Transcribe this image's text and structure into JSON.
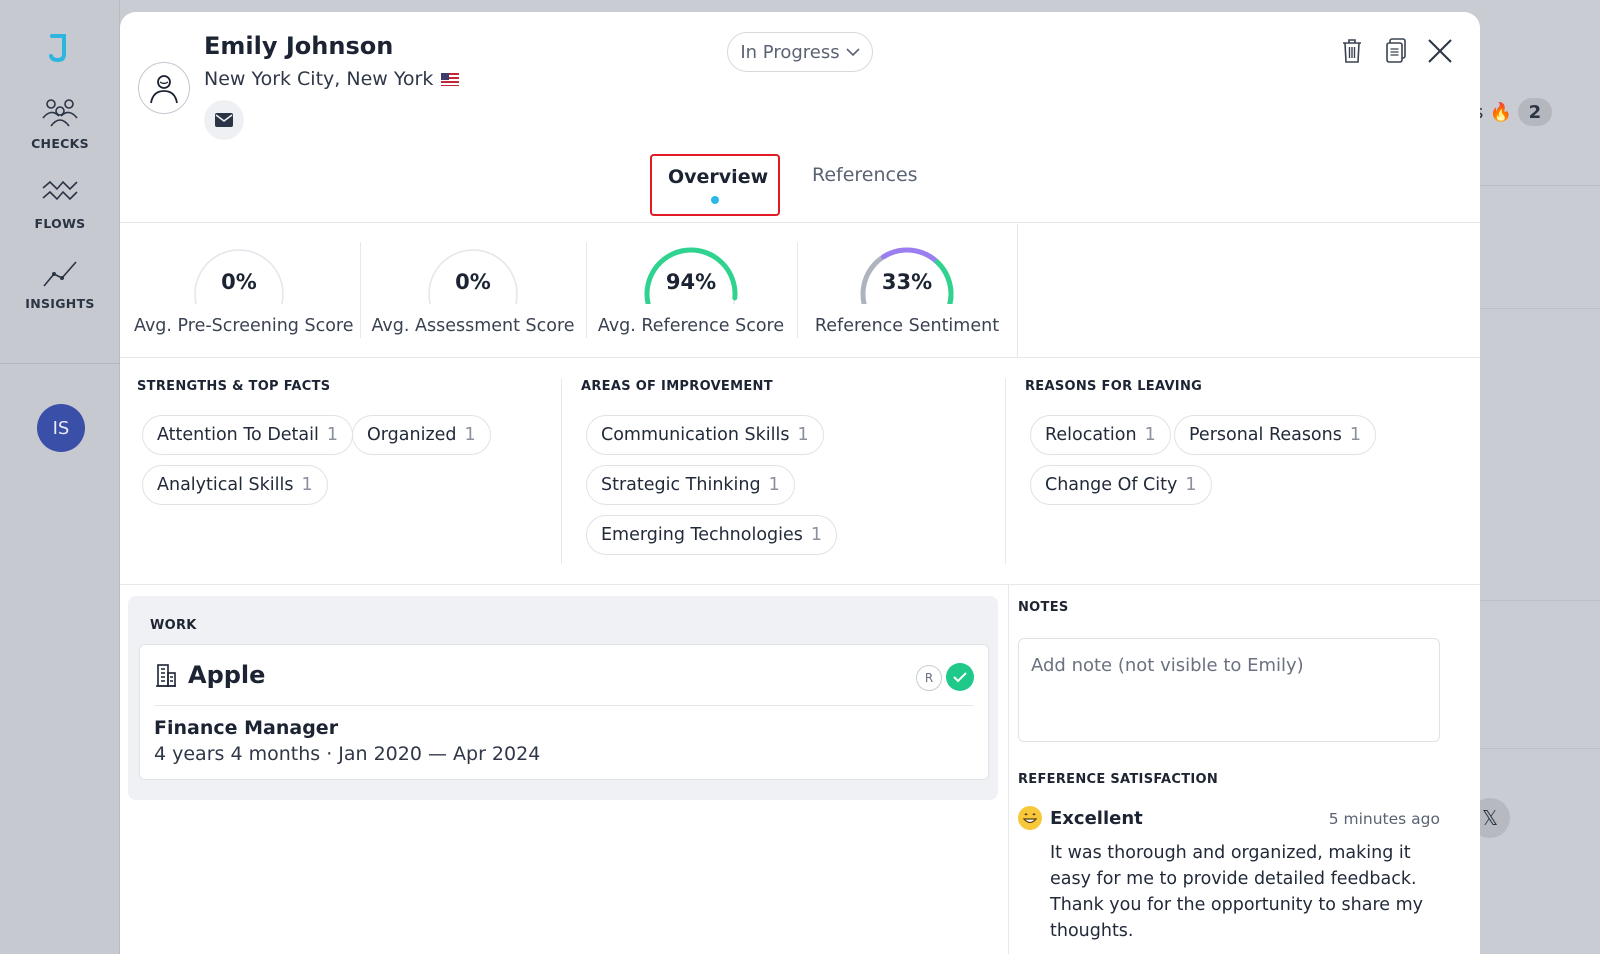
{
  "sidebar": {
    "items": [
      {
        "label": "CHECKS",
        "icon": "people-icon"
      },
      {
        "label": "FLOWS",
        "icon": "waves-icon"
      },
      {
        "label": "INSIGHTS",
        "icon": "trend-icon"
      }
    ],
    "user_initials": "IS"
  },
  "background": {
    "hint_text": "ts",
    "hint_count": "2"
  },
  "candidate": {
    "name": "Emily Johnson",
    "location": "New York City, New York"
  },
  "status": {
    "label": "In Progress"
  },
  "tabs": [
    {
      "label": "Overview",
      "active": true
    },
    {
      "label": "References",
      "active": false
    }
  ],
  "scores": [
    {
      "value": "0%",
      "label": "Avg. Pre-Screening Score",
      "percent": 0,
      "color": "#d6d9de"
    },
    {
      "value": "0%",
      "label": "Avg. Assessment Score",
      "percent": 0,
      "color": "#d6d9de"
    },
    {
      "value": "94%",
      "label": "Avg. Reference Score",
      "percent": 94,
      "color": "#2fd38f"
    },
    {
      "value": "33%",
      "label": "Reference Sentiment",
      "percent": 33,
      "color": "#9b7ff0"
    }
  ],
  "strengths": {
    "title": "STRENGTHS & TOP FACTS",
    "tags": [
      {
        "label": "Attention To Detail",
        "count": "1"
      },
      {
        "label": "Organized",
        "count": "1"
      },
      {
        "label": "Analytical Skills",
        "count": "1"
      }
    ]
  },
  "improvement": {
    "title": "AREAS OF IMPROVEMENT",
    "tags": [
      {
        "label": "Communication Skills",
        "count": "1"
      },
      {
        "label": "Strategic Thinking",
        "count": "1"
      },
      {
        "label": "Emerging Technologies",
        "count": "1"
      }
    ]
  },
  "leaving": {
    "title": "REASONS FOR LEAVING",
    "tags": [
      {
        "label": "Relocation",
        "count": "1"
      },
      {
        "label": "Personal Reasons",
        "count": "1"
      },
      {
        "label": "Change Of City",
        "count": "1"
      }
    ]
  },
  "work": {
    "title": "WORK",
    "company": "Apple",
    "badge": "R",
    "role": "Finance Manager",
    "duration": "4 years 4 months · Jan 2020 — Apr 2024"
  },
  "notes": {
    "title": "NOTES",
    "placeholder": "Add note (not visible to Emily)"
  },
  "satisfaction": {
    "title": "REFERENCE SATISFACTION",
    "rating": "Excellent",
    "time": "5 minutes ago",
    "comment": "It was thorough and organized, making it easy for me to provide detailed feedback. Thank you for the opportunity to share my thoughts."
  }
}
